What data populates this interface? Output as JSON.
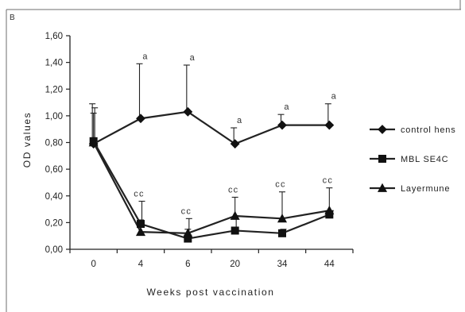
{
  "panel_label": "B",
  "chart_data": {
    "type": "line",
    "title": "",
    "xlabel": "Weeks post vaccination",
    "ylabel": "OD values",
    "categories": [
      "0",
      "4",
      "6",
      "20",
      "34",
      "44"
    ],
    "yticks": [
      "0,00",
      "0,20",
      "0,40",
      "0,60",
      "0,80",
      "1,00",
      "1,20",
      "1,40",
      "1,60"
    ],
    "ylim": [
      0,
      1.6
    ],
    "grid": false,
    "legend_position": "right",
    "series": [
      {
        "name": "control hens",
        "marker": "diamond",
        "values": [
          0.79,
          0.98,
          1.03,
          0.79,
          0.93,
          0.93
        ],
        "error_upper": [
          1.09,
          1.39,
          1.38,
          0.91,
          1.01,
          1.09
        ]
      },
      {
        "name": "MBL SE4C",
        "marker": "square",
        "values": [
          0.81,
          0.19,
          0.08,
          0.14,
          0.12,
          0.26
        ],
        "error_upper": [
          1.06,
          0.36,
          0.23,
          0.25,
          0.15,
          0.29
        ]
      },
      {
        "name": "Layermune",
        "marker": "triangle",
        "values": [
          0.8,
          0.13,
          0.12,
          0.25,
          0.23,
          0.29
        ],
        "error_upper": [
          1.02,
          0.22,
          0.15,
          0.39,
          0.43,
          0.46
        ]
      }
    ],
    "annotations": [
      {
        "category": "4",
        "value": 1.39,
        "text": "a"
      },
      {
        "category": "6",
        "value": 1.38,
        "text": "a"
      },
      {
        "category": "20",
        "value": 0.91,
        "text": "a"
      },
      {
        "category": "34",
        "value": 1.01,
        "text": "a"
      },
      {
        "category": "44",
        "value": 1.09,
        "text": "a"
      },
      {
        "category": "4",
        "value": 0.36,
        "text": "cc"
      },
      {
        "category": "6",
        "value": 0.23,
        "text": "cc"
      },
      {
        "category": "20",
        "value": 0.39,
        "text": "cc"
      },
      {
        "category": "34",
        "value": 0.43,
        "text": "cc"
      },
      {
        "category": "44",
        "value": 0.46,
        "text": "cc"
      }
    ]
  }
}
